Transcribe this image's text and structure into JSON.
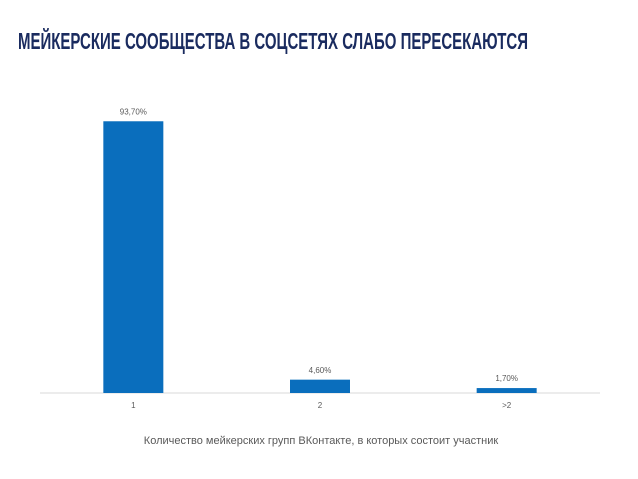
{
  "chart_data": {
    "type": "bar",
    "title": "МЕЙКЕРСКИЕ СООБЩЕСТВА В СОЦСЕТЯХ СЛАБО ПЕРЕСЕКАЮТСЯ",
    "x_label": "Количество мейкерских групп ВКонтакте, в которых состоит участник",
    "categories": [
      "1",
      "2",
      ">2"
    ],
    "values": [
      93.7,
      4.6,
      1.7
    ],
    "value_labels": [
      "93,70%",
      "4,60%",
      "1,70%"
    ],
    "color": "#0a6ebd",
    "ylim": [
      0,
      100
    ]
  }
}
